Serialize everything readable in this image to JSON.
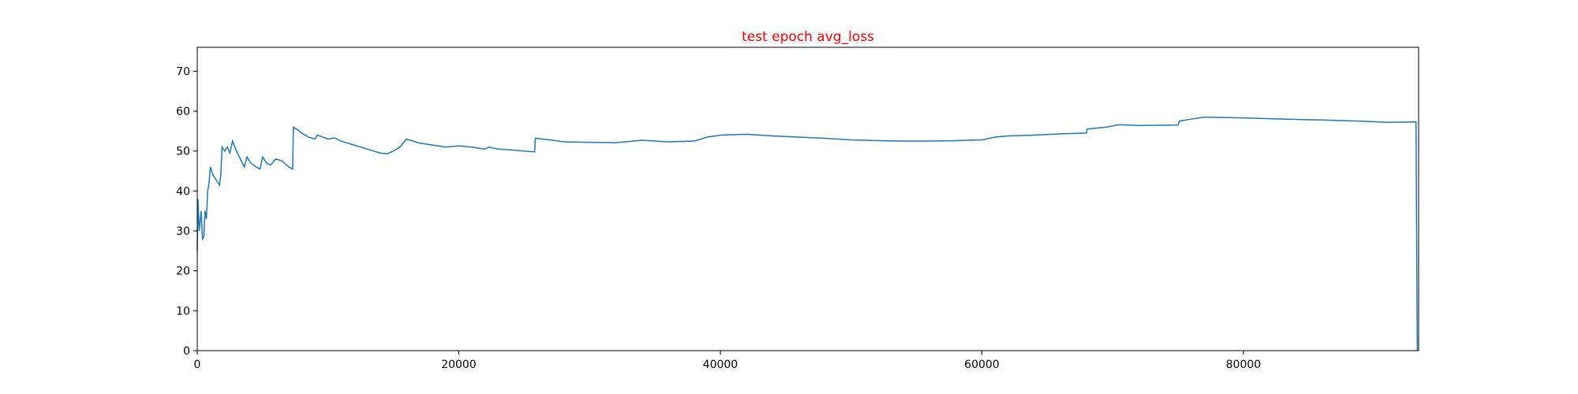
{
  "chart_data": {
    "type": "line",
    "title": "test epoch avg_loss",
    "title_color": "#ff0000",
    "x": [
      0,
      50,
      150,
      300,
      400,
      500,
      600,
      700,
      800,
      900,
      1000,
      1200,
      1400,
      1600,
      1700,
      1800,
      1900,
      2100,
      2300,
      2500,
      2700,
      3000,
      3300,
      3600,
      3800,
      4100,
      4500,
      4800,
      5000,
      5300,
      5600,
      6000,
      6500,
      7000,
      7300,
      7350,
      7600,
      8000,
      8500,
      9000,
      9200,
      9600,
      10000,
      10500,
      11000,
      12000,
      13000,
      14000,
      14500,
      15000,
      15500,
      16000,
      17000,
      18000,
      19000,
      20000,
      21000,
      22000,
      22300,
      23000,
      24000,
      25000,
      25800,
      25850,
      27000,
      28000,
      30000,
      32000,
      34000,
      36000,
      38000,
      39000,
      40000,
      42000,
      44000,
      46000,
      48000,
      50000,
      52000,
      54000,
      56000,
      58000,
      60000,
      61000,
      62000,
      64000,
      66000,
      68000,
      68050,
      69500,
      70500,
      72000,
      75000,
      75100,
      76000,
      77000,
      80000,
      83000,
      86000,
      89000,
      91000,
      93200,
      93300
    ],
    "series": [
      {
        "name": "avg_loss",
        "color": "#1f77b4",
        "values": [
          25,
          38,
          30,
          35,
          28,
          28.5,
          35,
          33,
          40,
          42,
          46,
          44,
          43,
          42,
          41.5,
          44,
          51,
          50,
          51,
          49.5,
          52.5,
          50,
          48,
          46,
          48.5,
          47,
          46,
          45.5,
          48.5,
          47,
          46.5,
          48,
          47.5,
          46,
          45.5,
          56,
          55.5,
          54.5,
          53.5,
          53,
          54,
          53.5,
          53,
          53.3,
          52.5,
          51.5,
          50.5,
          49.5,
          49.3,
          50,
          51,
          53,
          52,
          51.5,
          51,
          51.3,
          51,
          50.5,
          51,
          50.5,
          50.3,
          50,
          49.8,
          53.2,
          52.8,
          52.3,
          52.2,
          52.1,
          52.7,
          52.3,
          52.5,
          53.5,
          54,
          54.2,
          53.8,
          53.5,
          53.2,
          52.8,
          52.6,
          52.5,
          52.5,
          52.6,
          52.8,
          53.5,
          53.8,
          54,
          54.3,
          54.5,
          55.5,
          56,
          56.6,
          56.4,
          56.5,
          57.5,
          58,
          58.5,
          58.3,
          58,
          57.8,
          57.5,
          57.2,
          57.3,
          0
        ]
      }
    ],
    "xlim": [
      0,
      93400
    ],
    "ylim": [
      0,
      76
    ],
    "xticks": [
      0,
      20000,
      40000,
      60000,
      80000
    ],
    "yticks": [
      0,
      10,
      20,
      30,
      40,
      50,
      60,
      70
    ]
  }
}
